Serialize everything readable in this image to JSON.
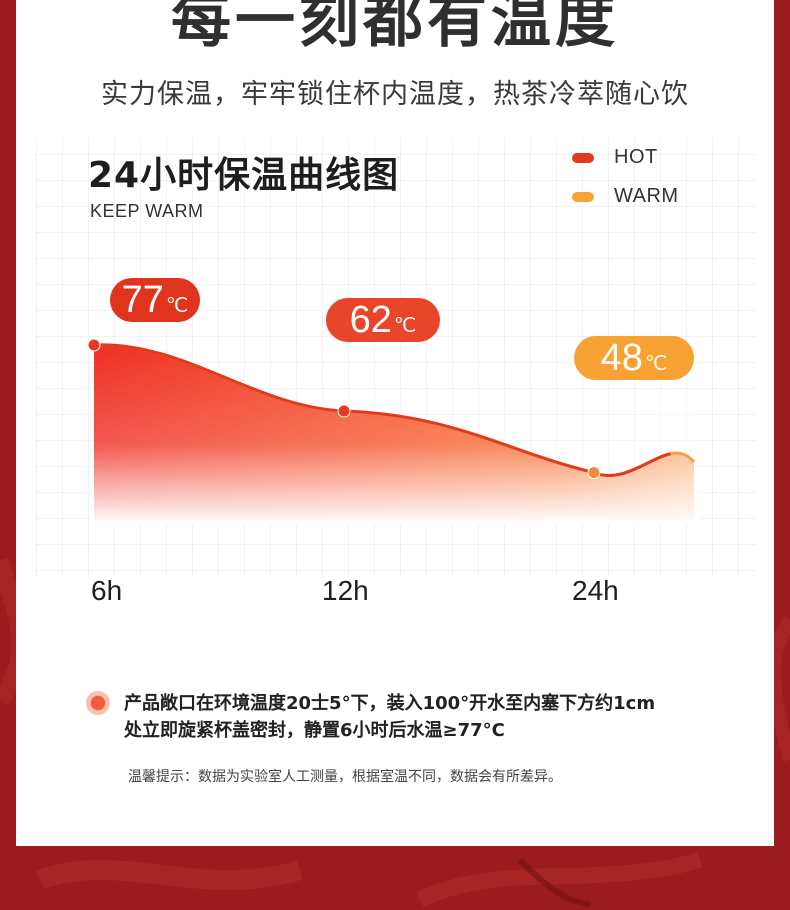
{
  "headline": "每一刻都有温度",
  "subheadline": "实力保温，牢牢锁住杯内温度，热茶冷萃随心饮",
  "colors": {
    "hot": "#e23a1d",
    "warm": "#f7a33c",
    "background": "#9a1c1e"
  },
  "chart_data": {
    "type": "area",
    "title": "24小时保温曲线图",
    "subtitle": "KEEP WARM",
    "legend": [
      {
        "name": "HOT",
        "color": "#e23a1d"
      },
      {
        "name": "WARM",
        "color": "#f7a33c"
      }
    ],
    "legend_position": "top-right",
    "grid": true,
    "x": [
      "6h",
      "12h",
      "24h"
    ],
    "values": [
      77,
      62,
      48
    ],
    "unit": "℃",
    "labels": [
      "77",
      "62",
      "48"
    ]
  },
  "note": {
    "line1": "产品敞口在环境温度20士5°下，装入100°开水至内塞下方约1cm",
    "line2": "处立即旋紧杯盖密封，静置6小时后水温≥77°C"
  },
  "tip": "温馨提示：数据为实验室人工测量，根据室温不同，数据会有所差异。"
}
